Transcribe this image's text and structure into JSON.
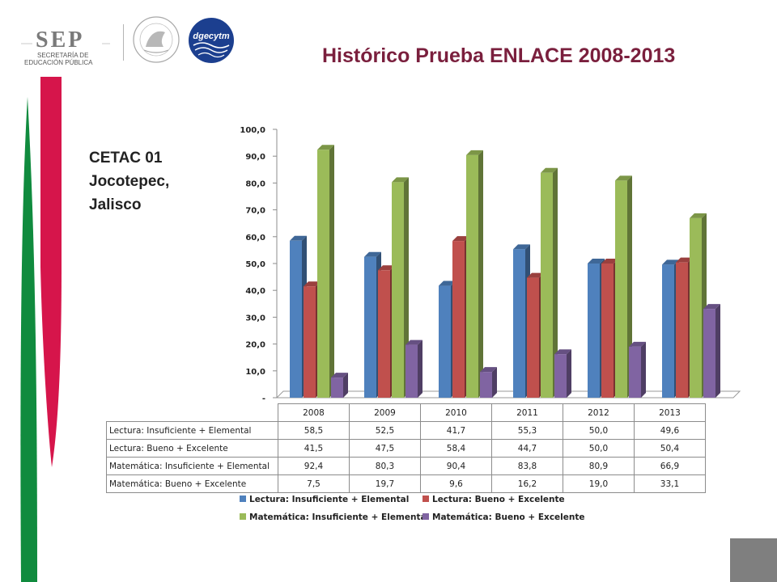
{
  "header": {
    "sep_logo_text": "SEP",
    "sep_line1": "SECRETARÍA DE",
    "sep_line2": "EDUCACIÓN PÚBLICA",
    "dgecytm_logo_text": "dgecytm",
    "title": "Histórico Prueba ENLACE 2008-2013"
  },
  "school": {
    "line1": "CETAC 01",
    "line2": "Jocotepec,",
    "line3": "Jalisco"
  },
  "colors": {
    "title": "#7a1f3d",
    "stripe_red": "#d6154b",
    "stripe_green": "#108b3e",
    "series": [
      "#4f81bd",
      "#c0504d",
      "#9bbb59",
      "#8064a2"
    ]
  },
  "chart_data": {
    "type": "bar",
    "title": "",
    "xlabel": "",
    "ylabel": "",
    "ylim": [
      0,
      100
    ],
    "y_ticks": [
      "-",
      "10,0",
      "20,0",
      "30,0",
      "40,0",
      "50,0",
      "60,0",
      "70,0",
      "80,0",
      "90,0",
      "100,0"
    ],
    "categories": [
      "2008",
      "2009",
      "2010",
      "2011",
      "2012",
      "2013"
    ],
    "series": [
      {
        "name": "Lectura: Insuficiente + Elemental",
        "values": [
          58.5,
          52.5,
          41.7,
          55.3,
          50.0,
          49.6
        ],
        "labels": [
          "58,5",
          "52,5",
          "41,7",
          "55,3",
          "50,0",
          "49,6"
        ],
        "color": "#4f81bd"
      },
      {
        "name": "Lectura: Bueno + Excelente",
        "values": [
          41.5,
          47.5,
          58.4,
          44.7,
          50.0,
          50.4
        ],
        "labels": [
          "41,5",
          "47,5",
          "58,4",
          "44,7",
          "50,0",
          "50,4"
        ],
        "color": "#c0504d"
      },
      {
        "name": "Matemática: Insuficiente + Elemental",
        "values": [
          92.4,
          80.3,
          90.4,
          83.8,
          80.9,
          66.9
        ],
        "labels": [
          "92,4",
          "80,3",
          "90,4",
          "83,8",
          "80,9",
          "66,9"
        ],
        "color": "#9bbb59"
      },
      {
        "name": "Matemática: Bueno + Excelente",
        "values": [
          7.5,
          19.7,
          9.6,
          16.2,
          19.0,
          33.1
        ],
        "labels": [
          "7,5",
          "19,7",
          "9,6",
          "16,2",
          "19,0",
          "33,1"
        ],
        "color": "#8064a2"
      }
    ],
    "legend_position": "bottom",
    "data_table": true,
    "style": "3d-clustered-column"
  }
}
